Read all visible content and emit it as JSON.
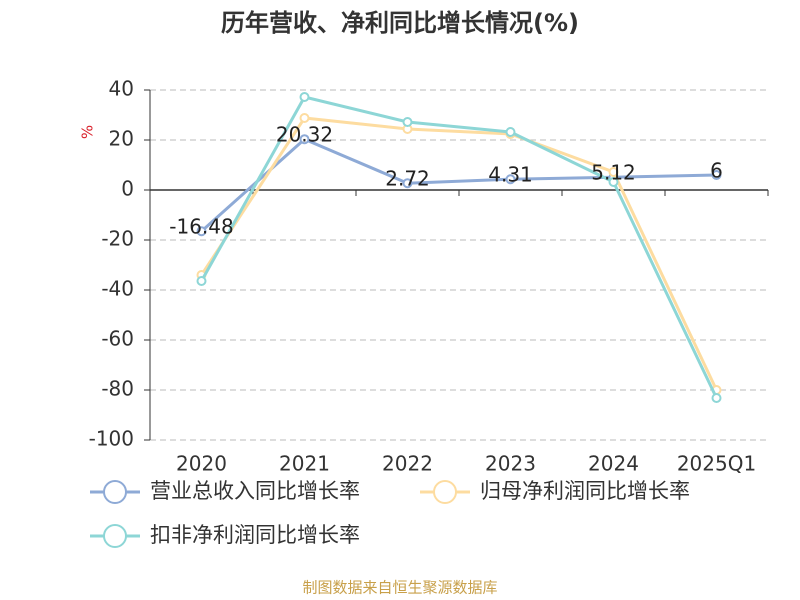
{
  "chart_data": {
    "type": "line",
    "title": "历年营收、净利同比增长情况(%)",
    "y_label": "%",
    "categories": [
      "2020",
      "2021",
      "2022",
      "2023",
      "2024",
      "2025Q1"
    ],
    "series": [
      {
        "name": "营业总收入同比增长率",
        "color": "#8eaad6",
        "values": [
          -16.48,
          20.32,
          2.72,
          4.31,
          5.12,
          6
        ],
        "data_labels": true
      },
      {
        "name": "归母净利润同比增长率",
        "color": "#fddca0",
        "values": [
          -34,
          28.8,
          24.4,
          22.4,
          7.2,
          -80
        ]
      },
      {
        "name": "扣非净利润同比增长率",
        "color": "#8dd6d6",
        "values": [
          -36.4,
          37.2,
          27.2,
          23.2,
          3.2,
          -83.2
        ]
      }
    ],
    "ylim": [
      -100,
      40
    ],
    "yticks": [
      -100,
      -80,
      -60,
      -40,
      -20,
      0,
      20,
      40
    ],
    "grid": true,
    "source": "制图数据来自恒生聚源数据库"
  }
}
